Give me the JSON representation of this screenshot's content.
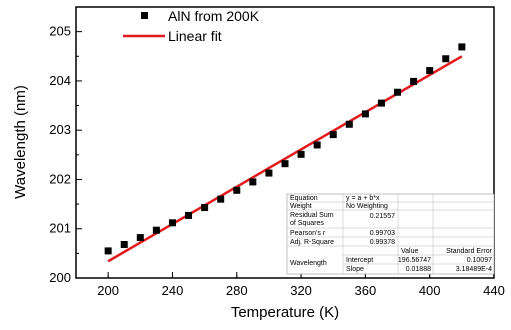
{
  "chart_data": {
    "type": "scatter",
    "xlabel": "Temperature (K)",
    "ylabel": "Wavelength (nm)",
    "xlim": [
      180,
      440
    ],
    "ylim": [
      200,
      205.5
    ],
    "x_ticks": [
      "200",
      "240",
      "280",
      "320",
      "360",
      "400",
      "440"
    ],
    "y_ticks": [
      "200",
      "201",
      "202",
      "203",
      "204",
      "205"
    ],
    "grid": false,
    "legend_position": "top-left",
    "series": [
      {
        "name": "AlN from 200K",
        "kind": "scatter",
        "marker": "square",
        "color": "#000000",
        "x": [
          200,
          210,
          220,
          230,
          240,
          250,
          260,
          270,
          280,
          290,
          300,
          310,
          320,
          330,
          340,
          350,
          360,
          370,
          380,
          390,
          400,
          410,
          420
        ],
        "y": [
          200.55,
          200.68,
          200.82,
          200.97,
          201.12,
          201.27,
          201.43,
          201.6,
          201.78,
          201.95,
          202.13,
          202.32,
          202.51,
          202.7,
          202.91,
          203.12,
          203.33,
          203.55,
          203.77,
          203.99,
          204.21,
          204.45,
          204.69
        ]
      },
      {
        "name": "Linear fit",
        "kind": "line",
        "color": "#e31a1c",
        "x": [
          200,
          420
        ],
        "y": [
          200.34,
          204.5
        ]
      }
    ],
    "stats_table": {
      "equation_label": "Equation",
      "equation_value": "y = a + b*x",
      "weight_label": "Weight",
      "weight_value": "No Weighting",
      "rss_label_1": "Residual Sum",
      "rss_label_2": "of Squares",
      "rss_value": "0.21557",
      "pearson_label": "Pearson's r",
      "pearson_value": "0.99703",
      "adjr_label": "Adj. R-Square",
      "adjr_value": "0.99378",
      "value_header": "Value",
      "stderr_header": "Standard Error",
      "row_label": "Wavelength",
      "intercept_label": "Intercept",
      "intercept_value": "196.56747",
      "intercept_err": "0.10097",
      "slope_label": "Slope",
      "slope_value": "0.01888",
      "slope_err": "3.18489E-4"
    }
  }
}
